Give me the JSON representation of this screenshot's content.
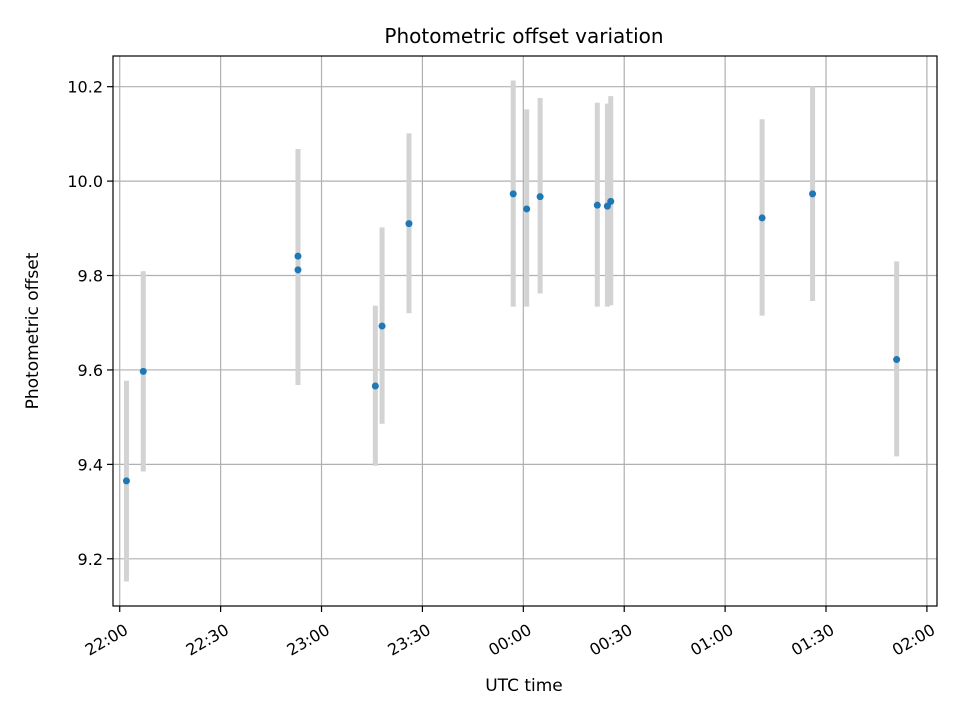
{
  "chart_data": {
    "type": "scatter",
    "title": "Photometric offset variation",
    "xlabel": "UTC time",
    "ylabel": "Photometric offset",
    "x_unit": "UTC time (HH:MM), day wraps after 23:59",
    "xlim": [
      "21:58",
      "02:03"
    ],
    "ylim": [
      9.1,
      10.265
    ],
    "x_ticks": [
      "22:00",
      "22:30",
      "23:00",
      "23:30",
      "00:00",
      "00:30",
      "01:00",
      "01:30",
      "02:00"
    ],
    "y_ticks": [
      9.2,
      9.4,
      9.6,
      9.8,
      10.0,
      10.2
    ],
    "y_tick_labels": [
      "9.2",
      "9.4",
      "9.6",
      "9.8",
      "10.0",
      "10.2"
    ],
    "grid": true,
    "colors": {
      "point": "#1f77b4",
      "errorbar": "#d3d3d3",
      "grid": "#b0b0b0"
    },
    "points": [
      {
        "x": "22:02",
        "y": 9.365,
        "ylo": 9.152,
        "yhi": 9.577
      },
      {
        "x": "22:07",
        "y": 9.597,
        "ylo": 9.385,
        "yhi": 9.809
      },
      {
        "x": "22:53",
        "y": 9.841,
        "ylo": 9.62,
        "yhi": 10.068
      },
      {
        "x": "22:53",
        "y": 9.812,
        "ylo": 9.568,
        "yhi": 10.055
      },
      {
        "x": "23:16",
        "y": 9.566,
        "ylo": 9.397,
        "yhi": 9.736
      },
      {
        "x": "23:18",
        "y": 9.693,
        "ylo": 9.486,
        "yhi": 9.902
      },
      {
        "x": "23:26",
        "y": 9.91,
        "ylo": 9.72,
        "yhi": 10.101
      },
      {
        "x": "23:57",
        "y": 9.973,
        "ylo": 9.734,
        "yhi": 10.213
      },
      {
        "x": "00:01",
        "y": 9.941,
        "ylo": 9.734,
        "yhi": 10.152
      },
      {
        "x": "00:05",
        "y": 9.967,
        "ylo": 9.762,
        "yhi": 10.176
      },
      {
        "x": "00:22",
        "y": 9.949,
        "ylo": 9.734,
        "yhi": 10.166
      },
      {
        "x": "00:25",
        "y": 9.947,
        "ylo": 9.734,
        "yhi": 10.164
      },
      {
        "x": "00:26",
        "y": 9.957,
        "ylo": 9.737,
        "yhi": 10.18
      },
      {
        "x": "01:11",
        "y": 9.922,
        "ylo": 9.715,
        "yhi": 10.131
      },
      {
        "x": "01:26",
        "y": 9.973,
        "ylo": 9.746,
        "yhi": 10.2
      },
      {
        "x": "01:51",
        "y": 9.622,
        "ylo": 9.417,
        "yhi": 9.83
      }
    ]
  }
}
